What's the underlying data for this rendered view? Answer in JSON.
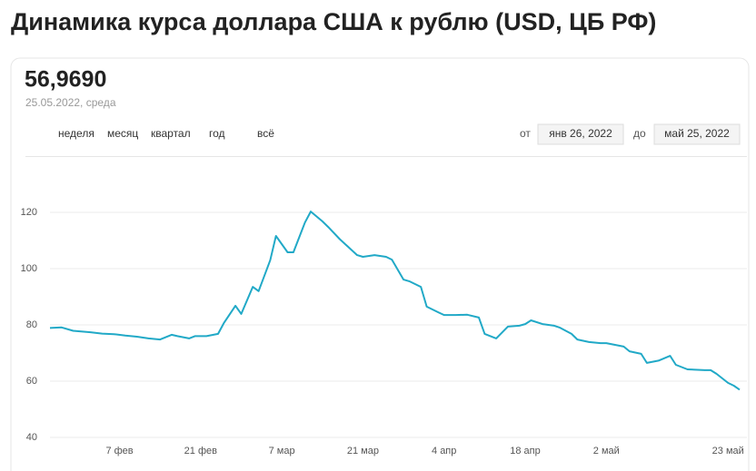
{
  "header": {
    "title": "Динамика курса доллара США к рублю (USD, ЦБ РФ)",
    "value": "56,9690",
    "date": "25.05.2022, среда"
  },
  "controls": {
    "periods": [
      "неделя",
      "месяц",
      "квартал",
      "год",
      "всё"
    ],
    "from_label": "от",
    "from_date": "янв 26, 2022",
    "to_label": "до",
    "to_date": "май 25, 2022"
  },
  "chart_data": {
    "type": "line",
    "color": "#21a9c7",
    "grid": true,
    "x": [
      "2022-01-26",
      "2022-01-28",
      "2022-01-30",
      "2022-02-02",
      "2022-02-04",
      "2022-02-06",
      "2022-02-08",
      "2022-02-10",
      "2022-02-12",
      "2022-02-14",
      "2022-02-16",
      "2022-02-17",
      "2022-02-19",
      "2022-02-20",
      "2022-02-22",
      "2022-02-24",
      "2022-02-25",
      "2022-02-27",
      "2022-02-28",
      "2022-03-02",
      "2022-03-03",
      "2022-03-05",
      "2022-03-06",
      "2022-03-08",
      "2022-03-09",
      "2022-03-11",
      "2022-03-12",
      "2022-03-14",
      "2022-03-15",
      "2022-03-17",
      "2022-03-20",
      "2022-03-21",
      "2022-03-23",
      "2022-03-25",
      "2022-03-26",
      "2022-03-28",
      "2022-03-29",
      "2022-03-31",
      "2022-04-01",
      "2022-04-03",
      "2022-04-04",
      "2022-04-06",
      "2022-04-08",
      "2022-04-10",
      "2022-04-11",
      "2022-04-13",
      "2022-04-15",
      "2022-04-17",
      "2022-04-18",
      "2022-04-19",
      "2022-04-21",
      "2022-04-23",
      "2022-04-24",
      "2022-04-26",
      "2022-04-27",
      "2022-04-29",
      "2022-05-01",
      "2022-05-02",
      "2022-05-05",
      "2022-05-06",
      "2022-05-08",
      "2022-05-09",
      "2022-05-11",
      "2022-05-13",
      "2022-05-14",
      "2022-05-16",
      "2022-05-19",
      "2022-05-20",
      "2022-05-21",
      "2022-05-23",
      "2022-05-24",
      "2022-05-25"
    ],
    "values": [
      78.9,
      79.1,
      77.9,
      77.4,
      76.9,
      76.7,
      76.2,
      75.8,
      75.2,
      74.8,
      76.5,
      76.0,
      75.2,
      76.0,
      76.0,
      76.8,
      80.6,
      86.8,
      83.9,
      93.5,
      92.0,
      103.0,
      111.6,
      105.8,
      105.8,
      116.4,
      120.3,
      116.8,
      114.8,
      110.5,
      104.8,
      104.2,
      104.8,
      104.2,
      103.2,
      96.1,
      95.5,
      93.5,
      86.5,
      84.5,
      83.5,
      83.5,
      83.6,
      82.6,
      76.8,
      75.2,
      79.4,
      79.7,
      80.3,
      81.6,
      80.3,
      79.7,
      79.0,
      76.8,
      74.8,
      73.9,
      73.5,
      73.5,
      72.3,
      70.6,
      69.7,
      66.5,
      67.3,
      69.0,
      65.8,
      64.2,
      63.9,
      63.9,
      62.6,
      59.4,
      58.4,
      56.969
    ],
    "xlim": [
      "2022-01-26",
      "2022-05-25"
    ],
    "xticks": [
      {
        "value": "2022-02-07",
        "label": "7 фев"
      },
      {
        "value": "2022-02-21",
        "label": "21 фев"
      },
      {
        "value": "2022-03-07",
        "label": "7 мар"
      },
      {
        "value": "2022-03-21",
        "label": "21 мар"
      },
      {
        "value": "2022-04-04",
        "label": "4 апр"
      },
      {
        "value": "2022-04-18",
        "label": "18 апр"
      },
      {
        "value": "2022-05-02",
        "label": "2 май"
      },
      {
        "value": "2022-05-23",
        "label": "23 май"
      }
    ],
    "ylim": [
      40,
      140
    ],
    "yticks": [
      40,
      60,
      80,
      100,
      120
    ]
  }
}
